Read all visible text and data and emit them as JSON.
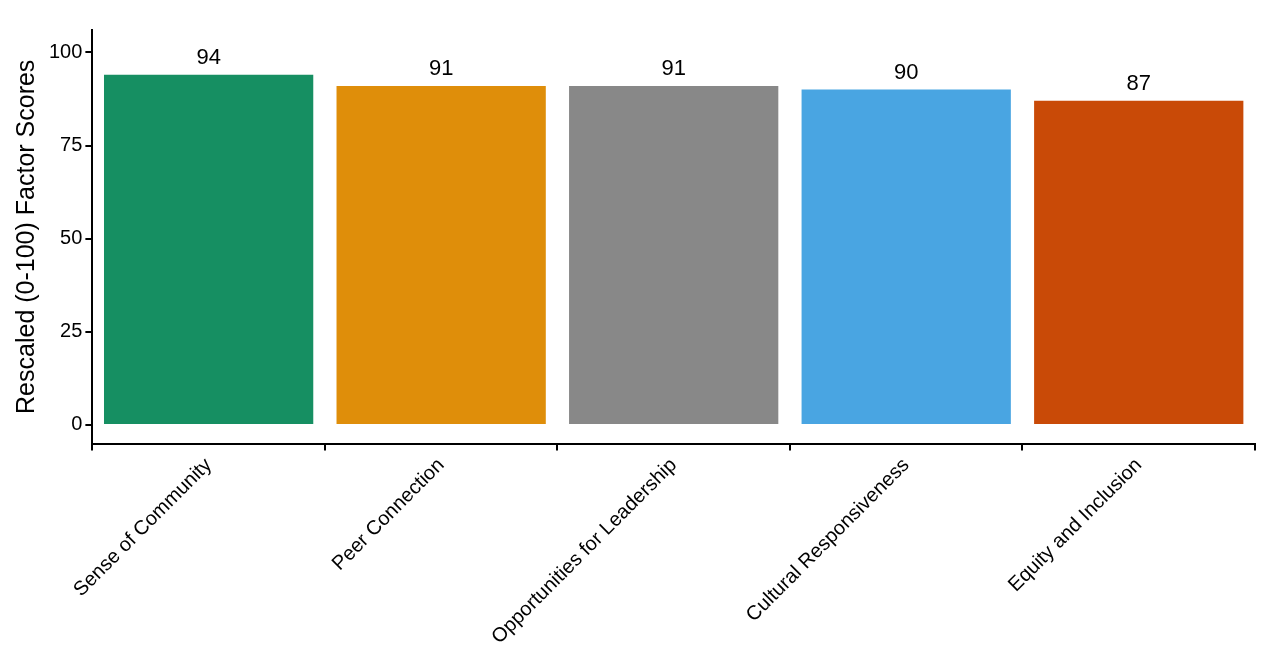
{
  "chart_data": {
    "type": "bar",
    "ylabel": "Rescaled (0-100) Factor Scores",
    "categories": [
      "Sense of Community",
      "Peer Connection",
      "Opportunities for Leadership",
      "Cultural Responsiveness",
      "Equity and Inclusion"
    ],
    "values": [
      94,
      91,
      91,
      90,
      87
    ],
    "colors": [
      "#168f62",
      "#df8e0a",
      "#888888",
      "#49a5e2",
      "#c94a07"
    ],
    "ylim": [
      -5,
      106
    ],
    "yticks": [
      0,
      25,
      50,
      75,
      100
    ],
    "grid": false,
    "legend": false,
    "data_labels": true
  }
}
